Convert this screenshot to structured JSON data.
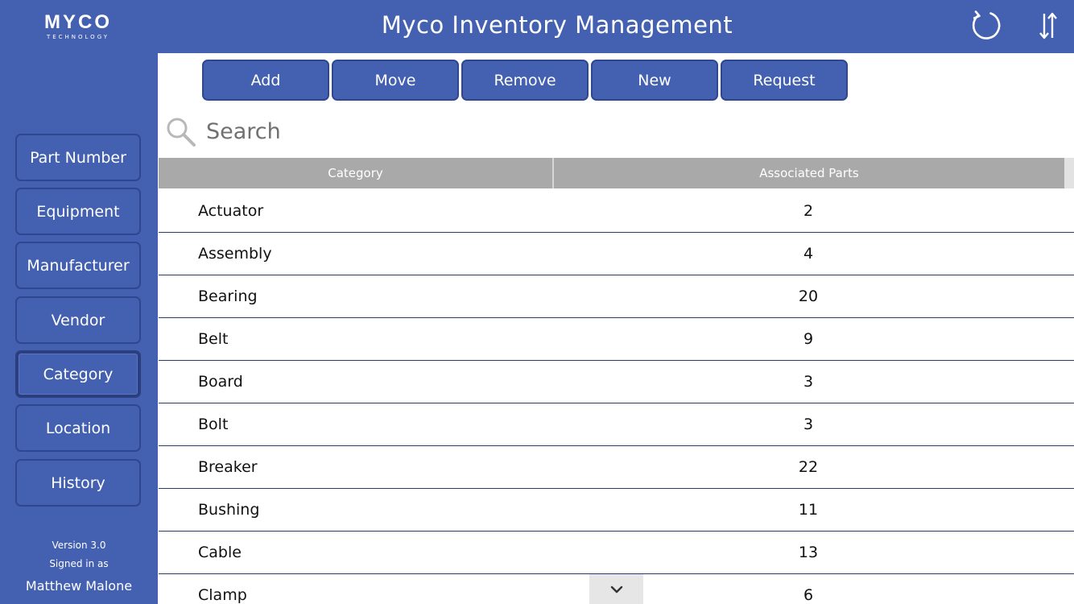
{
  "brand": {
    "name": "MYCO",
    "tagline": "TECHNOLOGY"
  },
  "header": {
    "title": "Myco Inventory Management"
  },
  "icons": {
    "refresh": "refresh-icon",
    "sort": "sort-icon",
    "search": "search-icon",
    "scroll_down": "chevron-down-icon"
  },
  "colors": {
    "primary": "#4460b0",
    "border": "#2f4790",
    "header_grey": "#a9a9a9",
    "row_divider": "#2b3a6a"
  },
  "sidebar": {
    "items": [
      {
        "label": "Part Number"
      },
      {
        "label": "Equipment"
      },
      {
        "label": "Manufacturer"
      },
      {
        "label": "Vendor"
      },
      {
        "label": "Category"
      },
      {
        "label": "Location"
      },
      {
        "label": "History"
      }
    ],
    "active": "Category",
    "version": "Version 3.0",
    "signed_in_label": "Signed in as",
    "user": "Matthew Malone"
  },
  "toolbar": {
    "buttons": [
      {
        "label": "Add"
      },
      {
        "label": "Move"
      },
      {
        "label": "Remove"
      },
      {
        "label": "New"
      },
      {
        "label": "Request"
      }
    ]
  },
  "search": {
    "placeholder": "Search",
    "value": ""
  },
  "table": {
    "columns": [
      "Category",
      "Associated Parts"
    ],
    "rows": [
      {
        "category": "Actuator",
        "parts": "2"
      },
      {
        "category": "Assembly",
        "parts": "4"
      },
      {
        "category": "Bearing",
        "parts": "20"
      },
      {
        "category": "Belt",
        "parts": "9"
      },
      {
        "category": "Board",
        "parts": "3"
      },
      {
        "category": "Bolt",
        "parts": "3"
      },
      {
        "category": "Breaker",
        "parts": "22"
      },
      {
        "category": "Bushing",
        "parts": "11"
      },
      {
        "category": "Cable",
        "parts": "13"
      },
      {
        "category": "Clamp",
        "parts": "6"
      }
    ]
  }
}
